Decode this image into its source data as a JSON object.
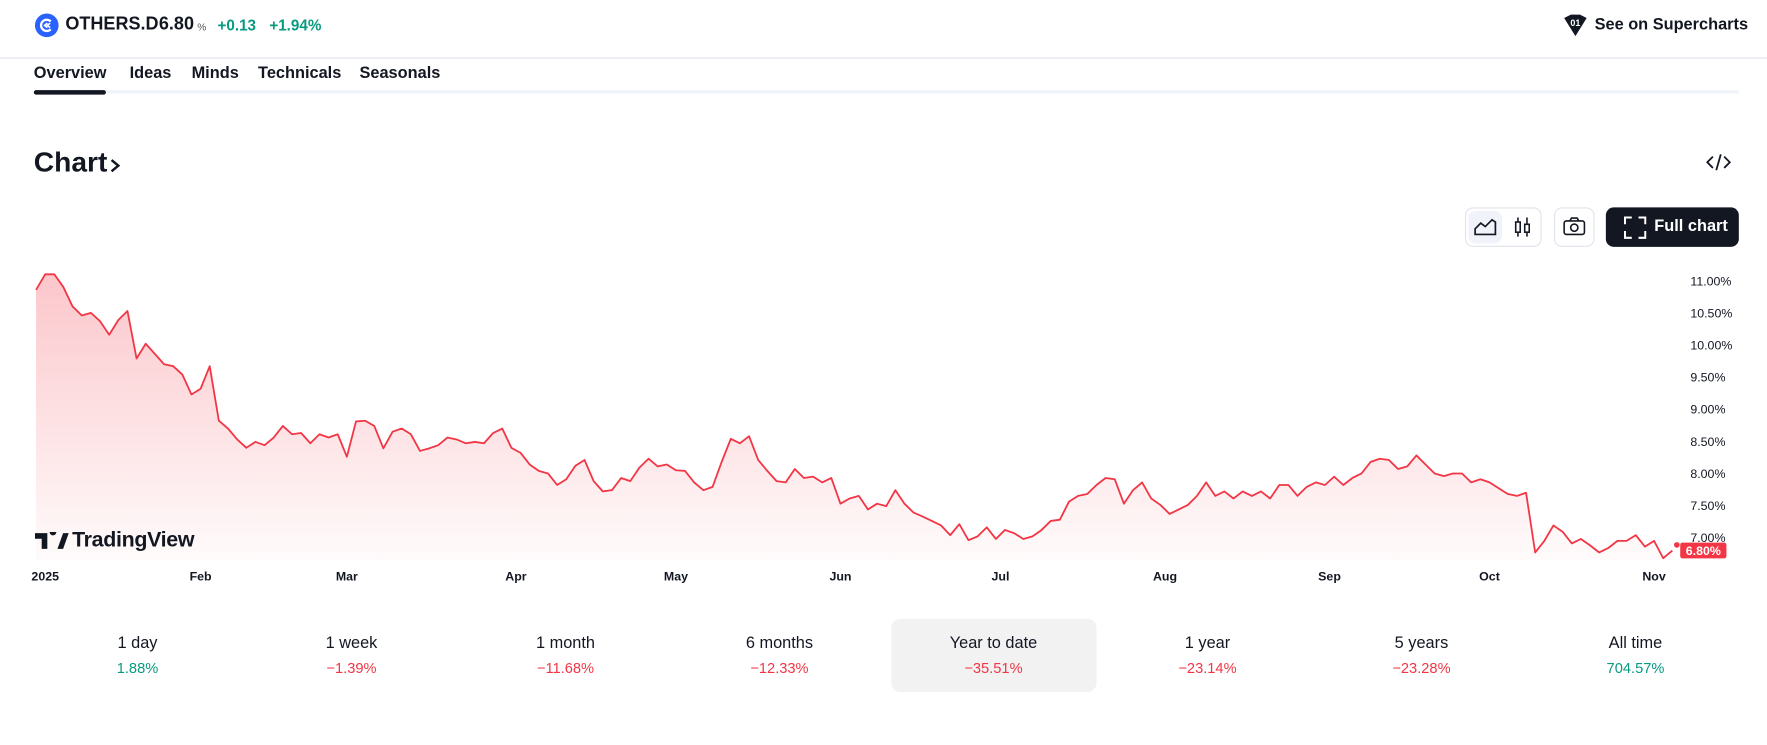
{
  "header": {
    "symbol": "OTHERS.D",
    "price": "6.80",
    "unit": "%",
    "change": "+0.13",
    "change_percent": "+1.94%",
    "supercharts": "See on Supercharts"
  },
  "tabs": [
    "Overview",
    "Ideas",
    "Minds",
    "Technicals",
    "Seasonals"
  ],
  "section_title": "Chart",
  "full_chart_button": "Full chart",
  "watermark": "TradingView",
  "chart_data": {
    "type": "line",
    "color": "#f23645",
    "values": [
      10.86,
      11.1,
      11.1,
      10.9,
      10.6,
      10.46,
      10.5,
      10.37,
      10.16,
      10.39,
      10.53,
      9.79,
      10.02,
      9.86,
      9.7,
      9.67,
      9.54,
      9.23,
      9.32,
      9.67,
      8.82,
      8.7,
      8.53,
      8.4,
      8.49,
      8.44,
      8.56,
      8.74,
      8.61,
      8.63,
      8.47,
      8.61,
      8.56,
      8.61,
      8.26,
      8.81,
      8.82,
      8.74,
      8.39,
      8.65,
      8.7,
      8.61,
      8.35,
      8.39,
      8.44,
      8.56,
      8.53,
      8.47,
      8.49,
      8.47,
      8.63,
      8.7,
      8.4,
      8.32,
      8.14,
      8.04,
      8.0,
      7.82,
      7.91,
      8.12,
      8.21,
      7.88,
      7.72,
      7.74,
      7.93,
      7.88,
      8.09,
      8.23,
      8.11,
      8.14,
      8.05,
      8.04,
      7.86,
      7.74,
      7.79,
      8.18,
      8.54,
      8.47,
      8.58,
      8.21,
      8.04,
      7.88,
      7.86,
      8.07,
      7.93,
      7.95,
      7.86,
      7.93,
      7.53,
      7.61,
      7.65,
      7.44,
      7.53,
      7.49,
      7.74,
      7.53,
      7.39,
      7.33,
      7.26,
      7.19,
      7.04,
      7.21,
      6.96,
      7.02,
      7.16,
      6.98,
      7.12,
      7.07,
      6.98,
      7.02,
      7.12,
      7.26,
      7.28,
      7.56,
      7.65,
      7.68,
      7.82,
      7.93,
      7.91,
      7.53,
      7.74,
      7.86,
      7.61,
      7.51,
      7.37,
      7.44,
      7.51,
      7.65,
      7.86,
      7.65,
      7.72,
      7.61,
      7.72,
      7.65,
      7.72,
      7.61,
      7.82,
      7.82,
      7.65,
      7.79,
      7.86,
      7.82,
      7.95,
      7.82,
      7.93,
      8.0,
      8.18,
      8.23,
      8.21,
      8.07,
      8.11,
      8.28,
      8.14,
      8.0,
      7.96,
      8.0,
      8.0,
      7.86,
      7.91,
      7.86,
      7.77,
      7.68,
      7.65,
      7.7,
      6.77,
      6.95,
      7.19,
      7.09,
      6.91,
      6.98,
      6.88,
      6.77,
      6.84,
      6.95,
      6.95,
      7.04,
      6.86,
      6.95,
      6.68,
      6.8
    ],
    "xlim": [
      0,
      179
    ],
    "xticks": [
      {
        "value": 1,
        "label": "2025"
      },
      {
        "value": 18,
        "label": "Feb"
      },
      {
        "value": 34,
        "label": "Mar"
      },
      {
        "value": 52.5,
        "label": "Apr"
      },
      {
        "value": 70,
        "label": "May"
      },
      {
        "value": 88,
        "label": "Jun"
      },
      {
        "value": 105.5,
        "label": "Jul"
      },
      {
        "value": 123.5,
        "label": "Aug"
      },
      {
        "value": 141.5,
        "label": "Sep"
      },
      {
        "value": 159,
        "label": "Oct"
      },
      {
        "value": 177,
        "label": "Nov"
      }
    ],
    "ylim": [
      6.65,
      11.16
    ],
    "yticks": [
      {
        "value": 7,
        "label": "7.00%"
      },
      {
        "value": 7.5,
        "label": "7.50%"
      },
      {
        "value": 8,
        "label": "8.00%"
      },
      {
        "value": 8.5,
        "label": "8.50%"
      },
      {
        "value": 9,
        "label": "9.00%"
      },
      {
        "value": 9.5,
        "label": "9.50%"
      },
      {
        "value": 10,
        "label": "10.00%"
      },
      {
        "value": 10.5,
        "label": "10.50%"
      },
      {
        "value": 11,
        "label": "11.00%"
      }
    ],
    "price_label": "6.80%"
  },
  "performance": [
    {
      "label": "1 day",
      "value": "1.88%"
    },
    {
      "label": "1 week",
      "value": "−1.39%"
    },
    {
      "label": "1 month",
      "value": "−11.68%"
    },
    {
      "label": "6 months",
      "value": "−12.33%"
    },
    {
      "label": "Year to date",
      "value": "−35.51%"
    },
    {
      "label": "1 year",
      "value": "−23.14%"
    },
    {
      "label": "5 years",
      "value": "−23.28%"
    },
    {
      "label": "All time",
      "value": "704.57%"
    }
  ],
  "selected_period": 4
}
